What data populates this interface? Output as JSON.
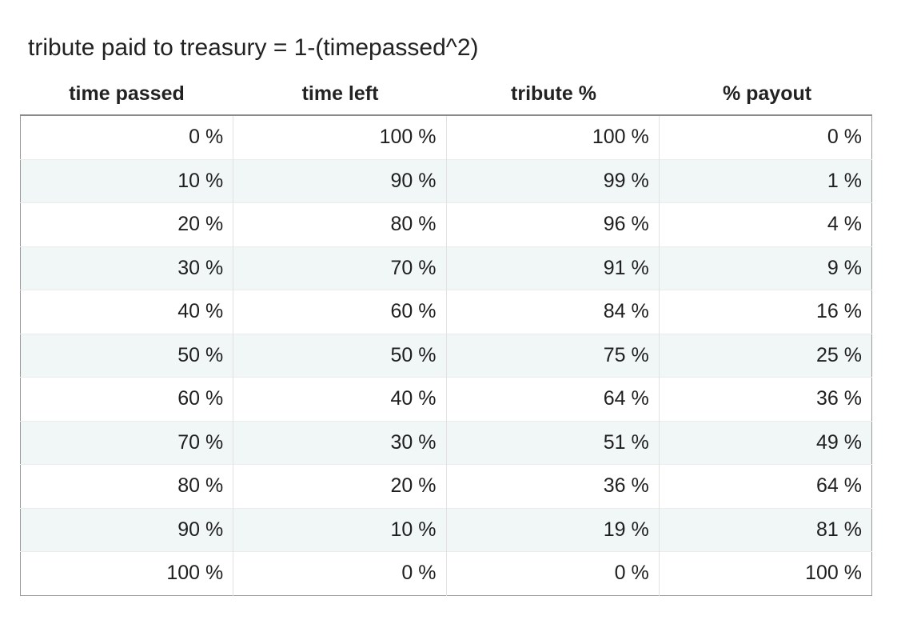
{
  "title": "tribute paid to treasury = 1-(timepassed^2)",
  "chart_data": {
    "type": "table",
    "columns": [
      "time passed",
      "time left",
      "tribute %",
      "% payout"
    ],
    "rows": [
      [
        "0 %",
        "100 %",
        "100 %",
        "0 %"
      ],
      [
        "10 %",
        "90 %",
        "99 %",
        "1 %"
      ],
      [
        "20 %",
        "80 %",
        "96 %",
        "4 %"
      ],
      [
        "30 %",
        "70 %",
        "91 %",
        "9 %"
      ],
      [
        "40 %",
        "60 %",
        "84 %",
        "16 %"
      ],
      [
        "50 %",
        "50 %",
        "75 %",
        "25 %"
      ],
      [
        "60 %",
        "40 %",
        "64 %",
        "36 %"
      ],
      [
        "70 %",
        "30 %",
        "51 %",
        "49 %"
      ],
      [
        "80 %",
        "20 %",
        "36 %",
        "64 %"
      ],
      [
        "90 %",
        "10 %",
        "19 %",
        "81 %"
      ],
      [
        "100 %",
        "0 %",
        "0 %",
        "100 %"
      ]
    ]
  }
}
